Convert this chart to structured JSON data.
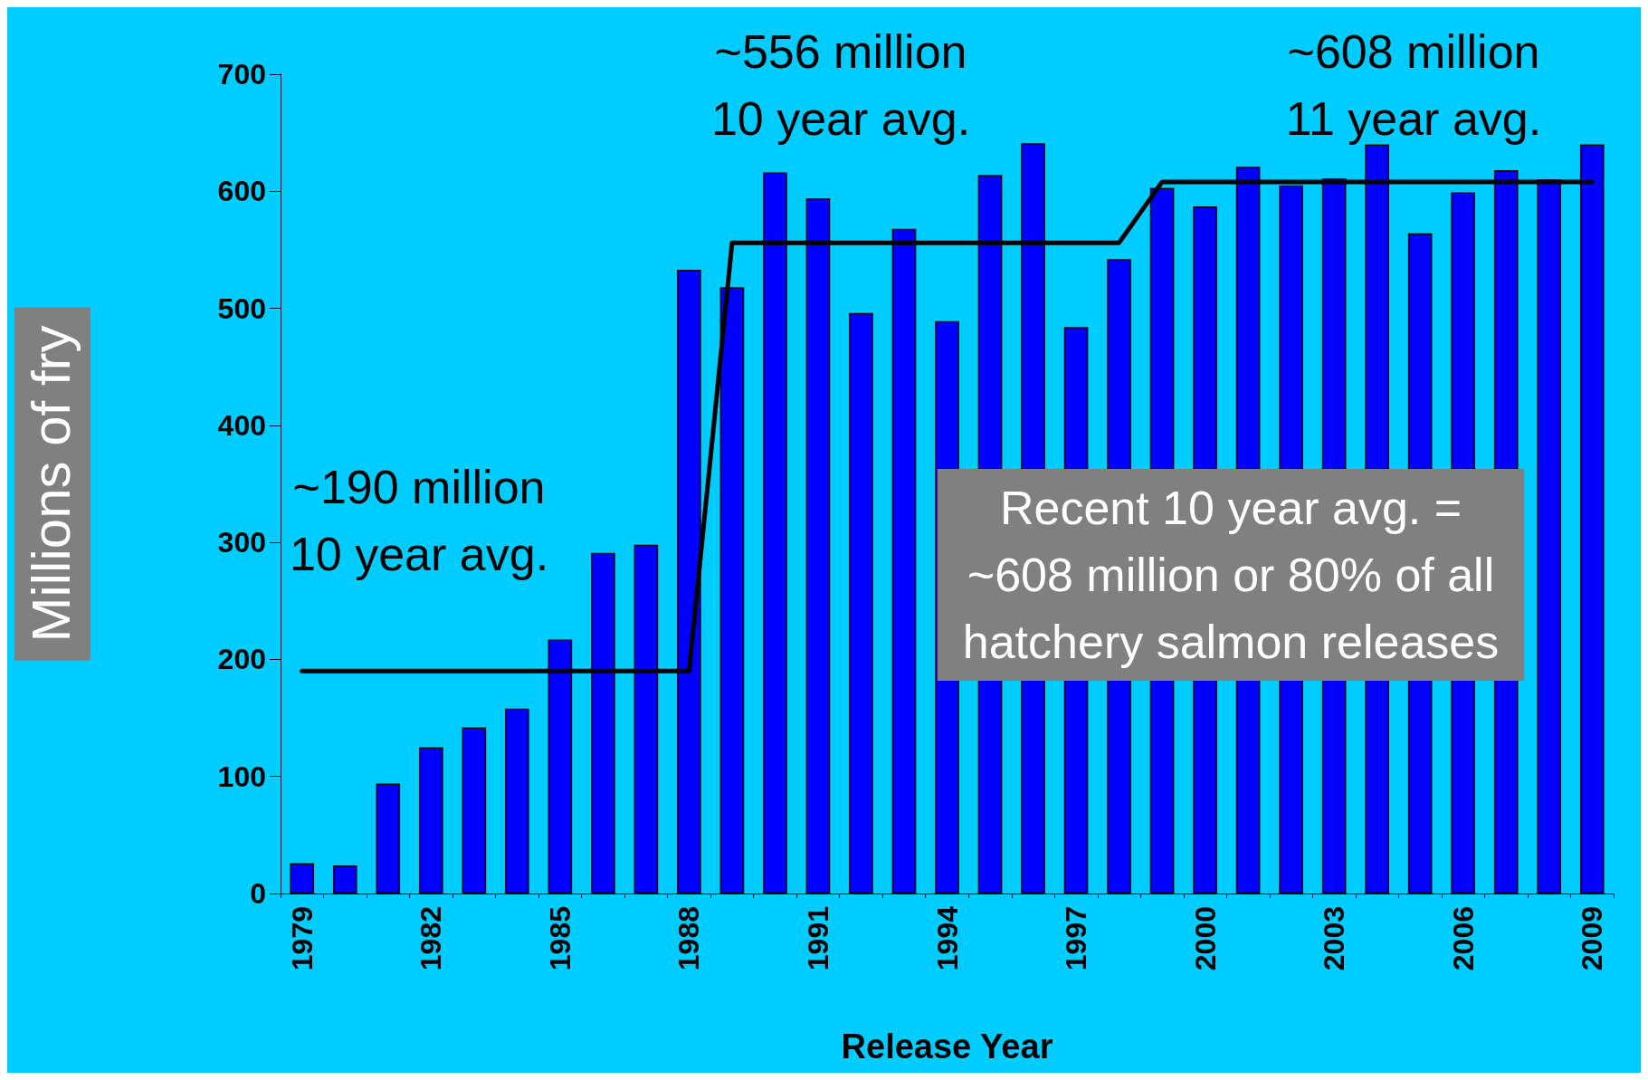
{
  "chart_data": {
    "type": "bar",
    "xlabel": "Release Year",
    "ylabel": "Millions of fry",
    "categories": [
      "1979",
      null,
      null,
      "1982",
      null,
      null,
      "1985",
      null,
      null,
      "1988",
      null,
      null,
      "1991",
      null,
      null,
      "1994",
      null,
      null,
      "1997",
      null,
      null,
      "2000",
      null,
      null,
      "2003",
      null,
      null,
      "2006",
      null,
      null,
      "2009"
    ],
    "series": [
      {
        "color": "#0000ff",
        "values": [
          26,
          24,
          94,
          125,
          142,
          158,
          217,
          291,
          298,
          533,
          518,
          616,
          594,
          496,
          568,
          489,
          614,
          641,
          484,
          542,
          603,
          587,
          621,
          605,
          611,
          640,
          564,
          599,
          618,
          610,
          640
        ]
      },
      {
        "type": "line",
        "color": "#000000",
        "marker": "none",
        "line_style": "solid",
        "values": [
          190,
          190,
          190,
          190,
          190,
          190,
          190,
          190,
          190,
          190,
          556,
          556,
          556,
          556,
          556,
          556,
          556,
          556,
          556,
          556,
          608,
          608,
          608,
          608,
          608,
          608,
          608,
          608,
          608,
          608,
          608
        ]
      }
    ],
    "ylim": [
      0,
      700
    ],
    "yticks": [
      0,
      100,
      200,
      300,
      400,
      500,
      600,
      700
    ],
    "grid": false,
    "annotations": [
      "~190 million\n10 year avg.",
      "~556 million\n10 year avg.",
      "~608 million\n11 year avg.",
      "Recent 10 year avg. =\n~608 million or 80% of all\nhatchery salmon releases"
    ]
  }
}
